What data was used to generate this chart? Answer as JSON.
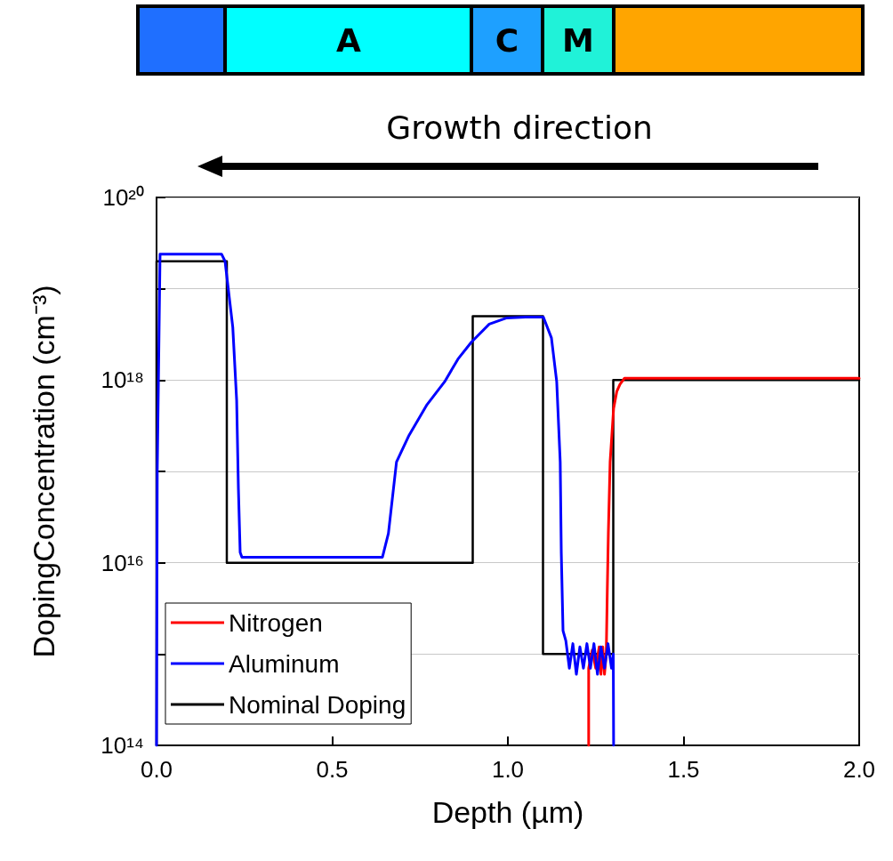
{
  "chart_data": {
    "type": "line",
    "xlabel": "Depth (µm)",
    "ylabel": "DopingConcentration (cm⁻³)",
    "annotations": [
      "A",
      "C",
      "M",
      "Growth direction"
    ],
    "xlim": [
      0,
      2.0
    ],
    "xticks": [
      {
        "value": 0,
        "label": "0.0"
      },
      0.5,
      {
        "value": 1,
        "label": "1.0"
      },
      1.5,
      {
        "value": 2,
        "label": "2.0"
      }
    ],
    "ylim": [
      100000000000000.0,
      1e+20
    ],
    "log": "y",
    "yticks": [
      {
        "value": 100000000000000.0,
        "label": "10¹⁴"
      },
      {
        "value": 1000000000000000.0,
        "label": null
      },
      {
        "value": 1e+16,
        "label": "10¹⁶"
      },
      {
        "value": 1e+17,
        "label": null
      },
      {
        "value": 1e+18,
        "label": "10¹⁸"
      },
      {
        "value": 1e+19,
        "label": null
      },
      {
        "value": 1e+20,
        "label": "10²⁰"
      }
    ],
    "grid": "y",
    "legend": "bottom left",
    "marker": "none",
    "line_style": "solid",
    "series": [
      {
        "name": "Nitrogen",
        "color": "#ff0000",
        "x": [
          1.23,
          1.23,
          1.24,
          1.25,
          1.26,
          1.265,
          1.27,
          1.275,
          1.28,
          1.283,
          1.286,
          1.291,
          1.301,
          1.31,
          1.319,
          1.332,
          1.5,
          1.7,
          2.0
        ],
        "values": [
          100000000000000.0,
          700000000000000.0,
          1100000000000000.0,
          700000000000000.0,
          1200000000000000.0,
          600000000000000.0,
          1200000000000000.0,
          600000000000000.0,
          1000000000000000.0,
          5000000000000000.0,
          2.1e+16,
          1.27e+17,
          4.9e+17,
          7.5e+17,
          9e+17,
          1.05e+18,
          1.05e+18,
          1.05e+18,
          1.05e+18
        ]
      },
      {
        "name": "Aluminum",
        "color": "#0000ff",
        "x": [
          0,
          0.002,
          0.01,
          0.1,
          0.185,
          0.195,
          0.217,
          0.228,
          0.233,
          0.238,
          0.243,
          0.4,
          0.643,
          0.66,
          0.683,
          0.719,
          0.77,
          0.82,
          0.858,
          0.896,
          0.947,
          0.997,
          1.05,
          1.101,
          1.124,
          1.139,
          1.149,
          1.152,
          1.157,
          1.165,
          1.175,
          1.185,
          1.195,
          1.205,
          1.215,
          1.225,
          1.235,
          1.245,
          1.255,
          1.265,
          1.275,
          1.285,
          1.295,
          1.3,
          1.301
        ],
        "values": [
          100000000000000.0,
          1e+17,
          2.4e+19,
          2.4e+19,
          2.4e+19,
          2e+19,
          3.8e+18,
          6e+17,
          6.5e+16,
          1.3e+16,
          1.15e+16,
          1.15e+16,
          1.15e+16,
          2.1e+16,
          1.27e+17,
          2.5e+17,
          5.4e+17,
          9.6e+17,
          1.7e+18,
          2.6e+18,
          4.1e+18,
          4.8e+18,
          4.9e+18,
          4.9e+18,
          2.9e+18,
          9.6e+17,
          1.27e+17,
          1.3e+16,
          1800000000000000.0,
          1400000000000000.0,
          700000000000000.0,
          1300000000000000.0,
          600000000000000.0,
          1200000000000000.0,
          700000000000000.0,
          1300000000000000.0,
          700000000000000.0,
          1300000000000000.0,
          600000000000000.0,
          1200000000000000.0,
          700000000000000.0,
          1300000000000000.0,
          700000000000000.0,
          1000000000000000.0,
          100000000000000.0
        ]
      },
      {
        "name": "Nominal Doping",
        "color": "#000000",
        "x": [
          0,
          0,
          0.2,
          0.2,
          0.9,
          0.9,
          1.1,
          1.1,
          1.3,
          1.3,
          2.0
        ],
        "values": [
          100000000000000.0,
          2e+19,
          2e+19,
          1e+16,
          1e+16,
          5e+18,
          5e+18,
          1000000000000000.0,
          1000000000000000.0,
          1e+18,
          1e+18
        ]
      }
    ]
  }
}
